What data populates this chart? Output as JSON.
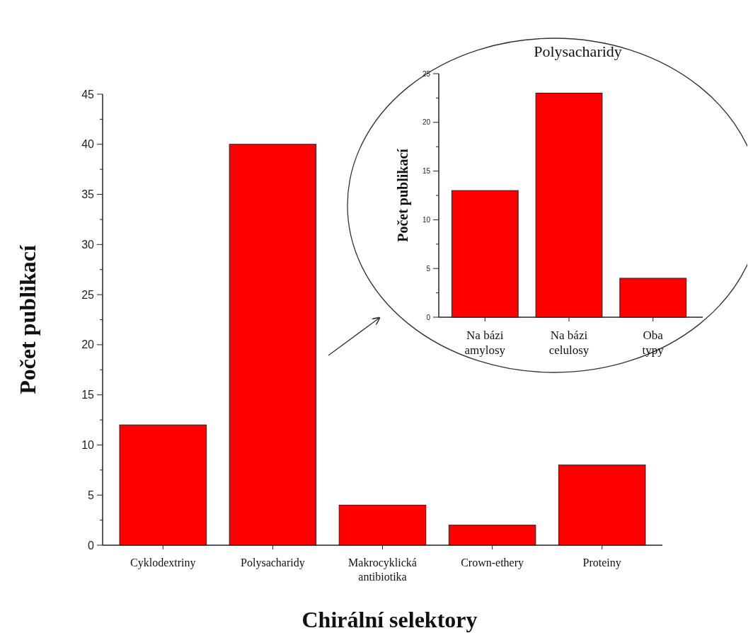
{
  "chart_data": [
    {
      "type": "bar",
      "xlabel": "Chirální selektory",
      "ylabel": "Počet publikací",
      "categories": [
        "Cyklodextriny",
        "Polysacharidy",
        "Makrocyklická\nantibiotika",
        "Crown-ethery",
        "Proteiny"
      ],
      "values": [
        12,
        40,
        4,
        2,
        8
      ],
      "color": "#ff0000",
      "ylim": [
        0,
        45
      ],
      "yticks": [
        0,
        5,
        10,
        15,
        20,
        25,
        30,
        35,
        40,
        45
      ],
      "grid": false
    },
    {
      "type": "bar",
      "title": "Polysacharidy",
      "ylabel": "Počet publikací",
      "categories": [
        "Na bázi\namylosy",
        "Na bázi\ncelulosy",
        "Oba\ntypy"
      ],
      "values": [
        13,
        23,
        4
      ],
      "color": "#ff0000",
      "ylim": [
        0,
        25
      ],
      "yticks": [
        0,
        5,
        10,
        15,
        20,
        25
      ],
      "grid": false
    }
  ]
}
